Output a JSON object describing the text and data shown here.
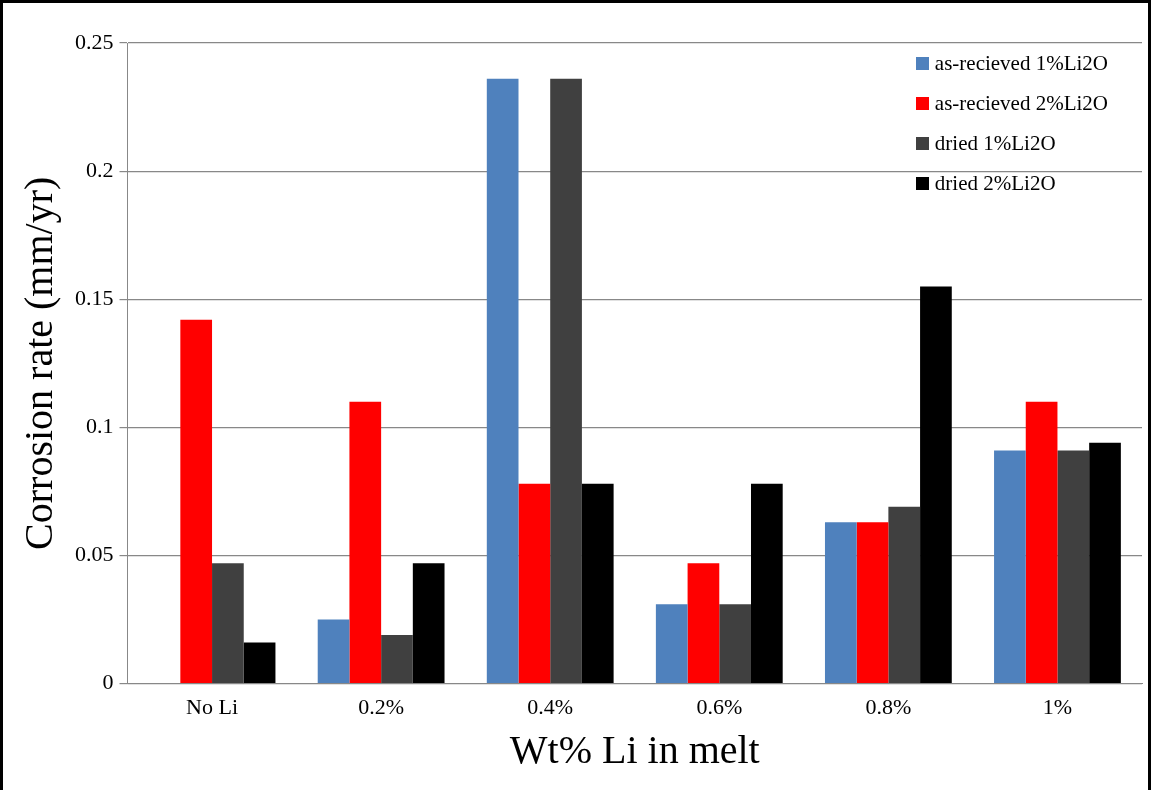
{
  "chart_data": {
    "type": "bar",
    "xlabel": "Wt% Li in melt",
    "ylabel": "Corrosion rate (mm/yr)",
    "categories": [
      "No Li",
      "0.2%",
      "0.4%",
      "0.6%",
      "0.8%",
      "1%"
    ],
    "series": [
      {
        "name": "as-recieved 1%Li2O",
        "color": "#4f81bd",
        "values": [
          0,
          0.025,
          0.236,
          0.031,
          0.063,
          0.091
        ]
      },
      {
        "name": "as-recieved 2%Li2O",
        "color": "#ff0000",
        "values": [
          0.142,
          0.11,
          0.078,
          0.047,
          0.063,
          0.11
        ]
      },
      {
        "name": "dried 1%Li2O",
        "color": "#404040",
        "values": [
          0.047,
          0.019,
          0.236,
          0.031,
          0.069,
          0.091
        ]
      },
      {
        "name": "dried 2%Li2O",
        "color": "#000000",
        "values": [
          0.016,
          0.047,
          0.078,
          0.078,
          0.155,
          0.094
        ]
      }
    ],
    "ylim": [
      0,
      0.25
    ],
    "yticks": [
      0,
      0.05,
      0.1,
      0.15,
      0.2,
      0.25
    ],
    "grid": "y",
    "legend": "top right"
  }
}
